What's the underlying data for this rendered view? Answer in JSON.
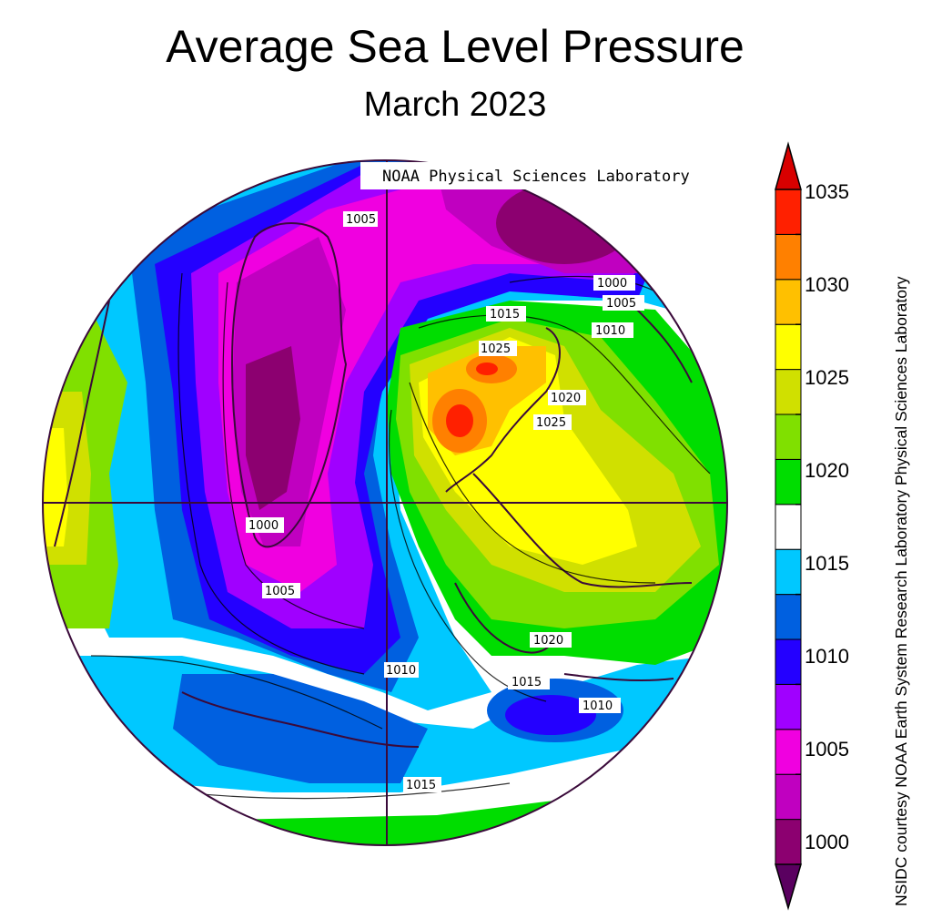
{
  "title": "Average Sea Level Pressure",
  "subtitle": "March 2023",
  "watermark": "NOAA Physical Sciences Laboratory",
  "credit": "NSIDC courtesy NOAA Earth System Research Laboratory Physical Sciences Laboratory",
  "colorbar": {
    "labels": [
      "1035",
      "1030",
      "1025",
      "1020",
      "1015",
      "1010",
      "1005",
      "1000"
    ],
    "colors": [
      "#8c0070",
      "#c000c0",
      "#f000e0",
      "#a000ff",
      "#2400ff",
      "#0060e0",
      "#00c8ff",
      "#ffffff",
      "#00dd00",
      "#80e000",
      "#d0e000",
      "#ffff00",
      "#ffc000",
      "#ff8000",
      "#ff2000"
    ],
    "arrow_low": "#5a0060",
    "arrow_high": "#d80000"
  },
  "contour_labels": [
    "1005",
    "1000",
    "1005",
    "1010",
    "1015",
    "1025",
    "1020",
    "1025",
    "1000",
    "1005",
    "1010",
    "1015",
    "1020",
    "1010",
    "1015"
  ]
}
